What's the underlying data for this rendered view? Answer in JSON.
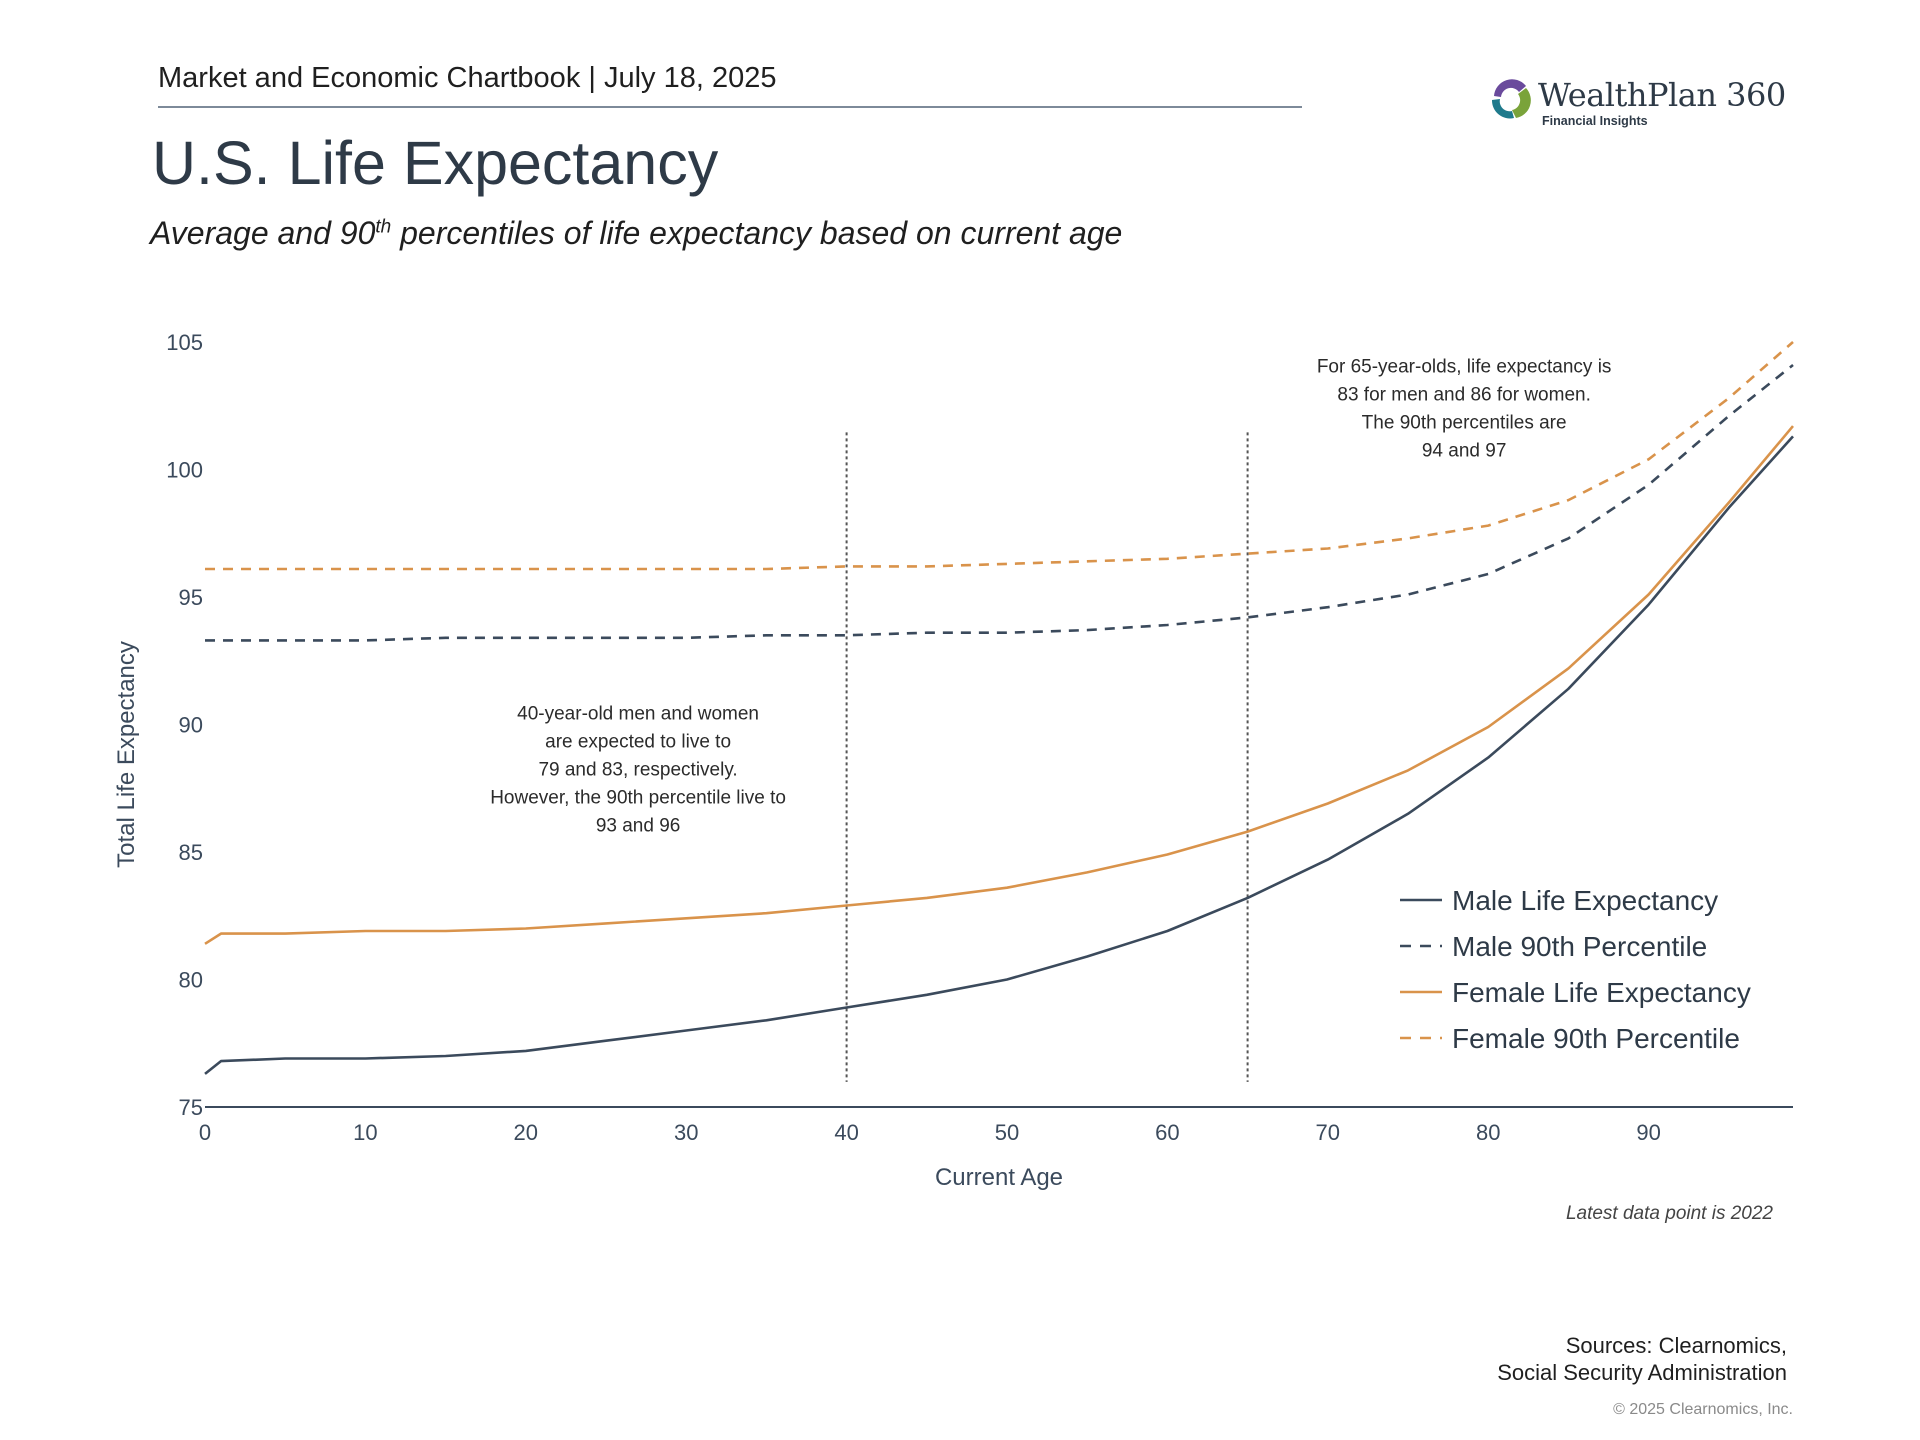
{
  "header": {
    "chartbook_label": "Market and Economic Chartbook | July 18, 2025"
  },
  "logo": {
    "name": "WealthPlan 360",
    "tagline": "Financial Insights"
  },
  "title": "U.S. Life Expectancy",
  "subtitle": {
    "before": "Average and 90",
    "sup": "th",
    "after": " percentiles of life expectancy based on current age"
  },
  "chart_data": {
    "type": "line",
    "xlabel": "Current Age",
    "ylabel": "Total Life Expectancy",
    "xlim": [
      0,
      99
    ],
    "ylim": [
      75,
      105
    ],
    "xticks": [
      0,
      10,
      20,
      30,
      40,
      50,
      60,
      70,
      80,
      90
    ],
    "yticks": [
      75,
      80,
      85,
      90,
      95,
      100,
      105
    ],
    "grid": false,
    "legend_position": "bottom-right",
    "x": [
      0,
      1,
      5,
      10,
      15,
      20,
      25,
      30,
      35,
      40,
      45,
      50,
      55,
      60,
      65,
      70,
      75,
      80,
      85,
      90,
      95,
      99
    ],
    "series": [
      {
        "name": "Male Life Expectancy",
        "style": "solid",
        "color": "#3b4a5c",
        "values": [
          76.3,
          76.8,
          76.9,
          76.9,
          77.0,
          77.2,
          77.6,
          78.0,
          78.4,
          78.9,
          79.4,
          80.0,
          80.9,
          81.9,
          83.2,
          84.7,
          86.5,
          88.7,
          91.4,
          94.7,
          98.5,
          101.3
        ]
      },
      {
        "name": "Male 90th Percentile",
        "style": "dashed",
        "color": "#3b4a5c",
        "values": [
          93.3,
          93.3,
          93.3,
          93.3,
          93.4,
          93.4,
          93.4,
          93.4,
          93.5,
          93.5,
          93.6,
          93.6,
          93.7,
          93.9,
          94.2,
          94.6,
          95.1,
          95.9,
          97.3,
          99.4,
          102.1,
          104.1
        ]
      },
      {
        "name": "Female Life Expectancy",
        "style": "solid",
        "color": "#d9934b",
        "values": [
          81.4,
          81.8,
          81.8,
          81.9,
          81.9,
          82.0,
          82.2,
          82.4,
          82.6,
          82.9,
          83.2,
          83.6,
          84.2,
          84.9,
          85.8,
          86.9,
          88.2,
          89.9,
          92.2,
          95.1,
          98.7,
          101.7
        ]
      },
      {
        "name": "Female 90th Percentile",
        "style": "dashed",
        "color": "#d9934b",
        "values": [
          96.1,
          96.1,
          96.1,
          96.1,
          96.1,
          96.1,
          96.1,
          96.1,
          96.1,
          96.2,
          96.2,
          96.3,
          96.4,
          96.5,
          96.7,
          96.9,
          97.3,
          97.8,
          98.8,
          100.4,
          102.8,
          105.0
        ]
      }
    ],
    "reference_lines": [
      {
        "x": 40,
        "y_from": 76.3,
        "y_to": 101.3,
        "style": "dotted"
      },
      {
        "x": 65,
        "y_from": 76.3,
        "y_to": 101.3,
        "style": "dotted"
      }
    ],
    "annotations": [
      {
        "at": {
          "x": 27,
          "y": 90.2
        },
        "lines": [
          "40-year-old men and women",
          "are expected to live to",
          "79 and 83, respectively.",
          "However, the 90th percentile live to",
          "93 and 96"
        ]
      },
      {
        "at": {
          "x": 78.5,
          "y": 103.8
        },
        "lines": [
          "For 65-year-olds, life expectancy is",
          "83 for men and 86 for women.",
          "The 90th percentiles are",
          "94 and 97"
        ]
      }
    ],
    "note": "Latest data point is 2022"
  },
  "sources": {
    "line1": "Sources: Clearnomics,",
    "line2": "Social Security Administration"
  },
  "copyright": "© 2025 Clearnomics, Inc."
}
